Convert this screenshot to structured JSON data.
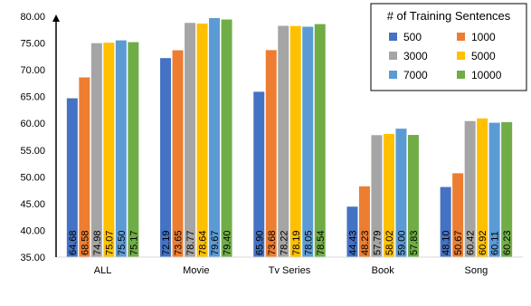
{
  "chart_data": {
    "type": "bar",
    "title": "",
    "xlabel": "",
    "ylabel": "",
    "ylim": [
      35,
      80
    ],
    "yticks": [
      "35.00",
      "40.00",
      "45.00",
      "50.00",
      "55.00",
      "60.00",
      "65.00",
      "70.00",
      "75.00",
      "80.00"
    ],
    "grid": false,
    "legend_position": "top-right",
    "legend_title": "# of Training Sentences",
    "categories": [
      "ALL",
      "Movie",
      "Tv Series",
      "Book",
      "Song"
    ],
    "series": [
      {
        "name": "500",
        "color": "#4472c4",
        "values": [
          64.68,
          72.19,
          65.9,
          44.43,
          48.1
        ]
      },
      {
        "name": "1000",
        "color": "#ed7d31",
        "values": [
          68.58,
          73.65,
          73.68,
          48.23,
          50.67
        ]
      },
      {
        "name": "3000",
        "color": "#a5a5a5",
        "values": [
          74.98,
          78.77,
          78.22,
          57.79,
          60.42
        ]
      },
      {
        "name": "5000",
        "color": "#ffc000",
        "values": [
          75.07,
          78.64,
          78.19,
          58.02,
          60.92
        ]
      },
      {
        "name": "7000",
        "color": "#5b9bd5",
        "values": [
          75.5,
          79.67,
          78.05,
          59.0,
          60.11
        ]
      },
      {
        "name": "10000",
        "color": "#70ad47",
        "values": [
          75.17,
          79.4,
          78.54,
          57.83,
          60.23
        ]
      }
    ]
  }
}
